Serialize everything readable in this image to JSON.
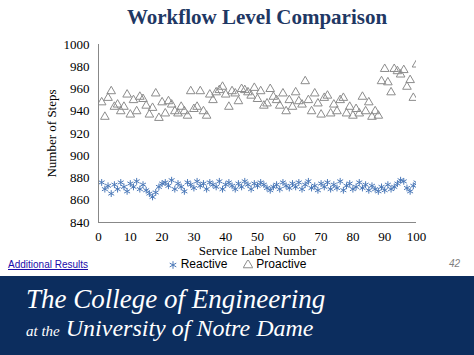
{
  "chart_data": {
    "type": "scatter",
    "title": "Workflow Level Comparison",
    "x_label": "Service Label Number",
    "y_label": "Number of Steps",
    "x": [
      1,
      2,
      3,
      4,
      5,
      6,
      7,
      8,
      9,
      10,
      11,
      12,
      13,
      14,
      15,
      16,
      17,
      18,
      19,
      20,
      21,
      22,
      23,
      24,
      25,
      26,
      27,
      28,
      29,
      30,
      31,
      32,
      33,
      34,
      35,
      36,
      37,
      38,
      39,
      40,
      41,
      42,
      43,
      44,
      45,
      46,
      47,
      48,
      49,
      50,
      51,
      52,
      53,
      54,
      55,
      56,
      57,
      58,
      59,
      60,
      61,
      62,
      63,
      64,
      65,
      66,
      67,
      68,
      69,
      70,
      71,
      72,
      73,
      74,
      75,
      76,
      77,
      78,
      79,
      80,
      81,
      82,
      83,
      84,
      85,
      86,
      87,
      88,
      89,
      90,
      91,
      92,
      93,
      94,
      95,
      96,
      97,
      98,
      99,
      100
    ],
    "series": [
      {
        "name": "Reactive",
        "color": "#4a78b8",
        "marker": "asterisk",
        "values": [
          876,
          870,
          873,
          866,
          874,
          870,
          876,
          872,
          868,
          875,
          872,
          877,
          870,
          874,
          869,
          866,
          863,
          867,
          872,
          875,
          876,
          873,
          878,
          870,
          875,
          872,
          868,
          876,
          874,
          871,
          877,
          873,
          875,
          870,
          876,
          874,
          872,
          877,
          870,
          874,
          876,
          873,
          870,
          875,
          872,
          877,
          874,
          870,
          875,
          873,
          876,
          874,
          871,
          869,
          872,
          874,
          870,
          876,
          873,
          871,
          875,
          872,
          876,
          870,
          874,
          877,
          871,
          873,
          869,
          875,
          872,
          876,
          870,
          874,
          871,
          877,
          869,
          873,
          875,
          870,
          872,
          876,
          871,
          874,
          869,
          873,
          870,
          868,
          872,
          869,
          874,
          870,
          872,
          875,
          878,
          877,
          871,
          868,
          873,
          876
        ]
      },
      {
        "name": "Proactive",
        "color": "#8c8c8c",
        "marker": "triangle",
        "values": [
          948,
          935,
          952,
          958,
          944,
          946,
          940,
          944,
          955,
          937,
          950,
          940,
          953,
          951,
          945,
          937,
          943,
          956,
          934,
          948,
          938,
          949,
          946,
          940,
          938,
          944,
          940,
          936,
          958,
          942,
          944,
          958,
          940,
          936,
          955,
          950,
          957,
          959,
          962,
          955,
          944,
          958,
          956,
          949,
          960,
          959,
          957,
          954,
          961,
          951,
          958,
          945,
          947,
          960,
          953,
          950,
          945,
          956,
          940,
          950,
          944,
          957,
          949,
          946,
          967,
          950,
          940,
          956,
          947,
          937,
          952,
          954,
          938,
          946,
          940,
          950,
          952,
          938,
          944,
          936,
          942,
          938,
          953,
          940,
          948,
          935,
          940,
          936,
          967,
          978,
          966,
          957,
          978,
          976,
          973,
          977,
          962,
          968,
          952,
          982
        ]
      }
    ],
    "xlim": [
      0,
      100
    ],
    "xticks": [
      0,
      10,
      20,
      30,
      40,
      50,
      60,
      70,
      80,
      90,
      100
    ],
    "ylim": [
      840,
      1000
    ],
    "yticks": [
      840,
      860,
      880,
      900,
      920,
      940,
      960,
      980,
      1000
    ],
    "grid": false,
    "legend": "bottom",
    "annotations": [
      "Additional Results",
      "42",
      "The College of Engineering",
      "at the",
      "University of Notre Dame"
    ]
  }
}
